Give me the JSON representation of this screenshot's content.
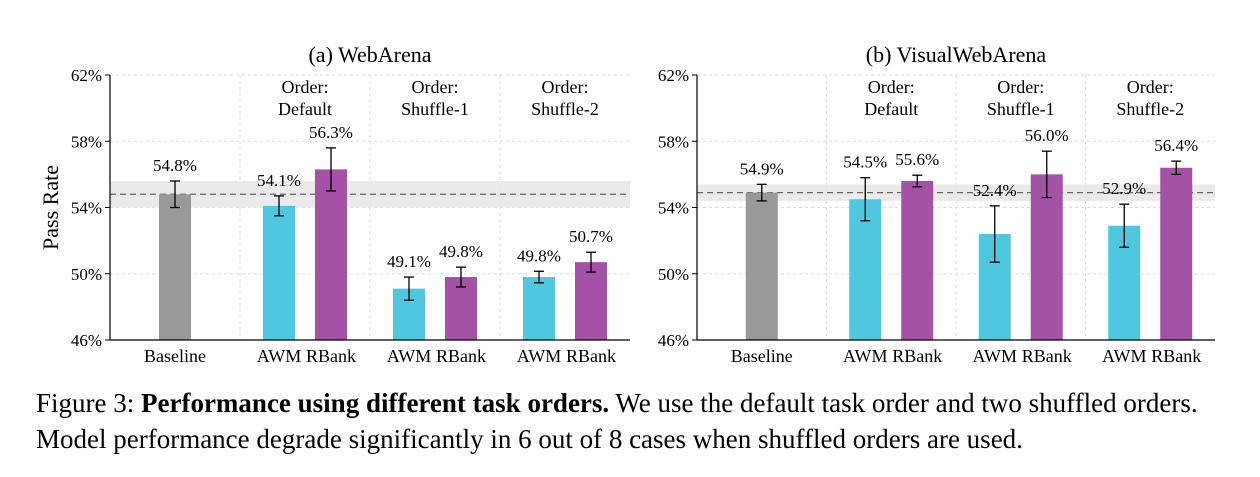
{
  "chart_data": [
    {
      "type": "bar",
      "title": "(a) WebArena",
      "ylabel": "Pass Rate",
      "ylim": [
        46,
        62
      ],
      "yticks": [
        46,
        50,
        54,
        58,
        62
      ],
      "ytick_labels": [
        "46%",
        "50%",
        "54%",
        "58%",
        "62%"
      ],
      "grid": true,
      "groups": [
        {
          "title": [
            "",
            ""
          ],
          "bars": [
            {
              "label": "Baseline",
              "value": 54.8,
              "err": 0.8,
              "value_label": "54.8%",
              "color": "#999999"
            }
          ]
        },
        {
          "title": [
            "Order:",
            "Default"
          ],
          "bars": [
            {
              "label": "AWM",
              "value": 54.1,
              "err": 0.6,
              "value_label": "54.1%",
              "color": "#4fc8df"
            },
            {
              "label": "RBank",
              "value": 56.3,
              "err": 1.3,
              "value_label": "56.3%",
              "color": "#a452a6"
            }
          ]
        },
        {
          "title": [
            "Order:",
            "Shuffle-1"
          ],
          "bars": [
            {
              "label": "AWM",
              "value": 49.1,
              "err": 0.7,
              "value_label": "49.1%",
              "color": "#4fc8df"
            },
            {
              "label": "RBank",
              "value": 49.8,
              "err": 0.6,
              "value_label": "49.8%",
              "color": "#a452a6"
            }
          ]
        },
        {
          "title": [
            "Order:",
            "Shuffle-2"
          ],
          "bars": [
            {
              "label": "AWM",
              "value": 49.8,
              "err": 0.35,
              "value_label": "49.8%",
              "color": "#4fc8df"
            },
            {
              "label": "RBank",
              "value": 50.7,
              "err": 0.6,
              "value_label": "50.7%",
              "color": "#a452a6"
            }
          ]
        }
      ],
      "baseline_line": 54.8,
      "baseline_band": [
        54.0,
        55.6
      ]
    },
    {
      "type": "bar",
      "title": "(b) VisualWebArena",
      "ylabel": "",
      "ylim": [
        46,
        62
      ],
      "yticks": [
        46,
        50,
        54,
        58,
        62
      ],
      "ytick_labels": [
        "46%",
        "50%",
        "54%",
        "58%",
        "62%"
      ],
      "grid": true,
      "groups": [
        {
          "title": [
            "",
            ""
          ],
          "bars": [
            {
              "label": "Baseline",
              "value": 54.9,
              "err": 0.5,
              "value_label": "54.9%",
              "color": "#999999"
            }
          ]
        },
        {
          "title": [
            "Order:",
            "Default"
          ],
          "bars": [
            {
              "label": "AWM",
              "value": 54.5,
              "err": 1.3,
              "value_label": "54.5%",
              "color": "#4fc8df"
            },
            {
              "label": "RBank",
              "value": 55.6,
              "err": 0.35,
              "value_label": "55.6%",
              "color": "#a452a6"
            }
          ]
        },
        {
          "title": [
            "Order:",
            "Shuffle-1"
          ],
          "bars": [
            {
              "label": "AWM",
              "value": 52.4,
              "err": 1.7,
              "value_label": "52.4%",
              "color": "#4fc8df"
            },
            {
              "label": "RBank",
              "value": 56.0,
              "err": 1.4,
              "value_label": "56.0%",
              "color": "#a452a6"
            }
          ]
        },
        {
          "title": [
            "Order:",
            "Shuffle-2"
          ],
          "bars": [
            {
              "label": "AWM",
              "value": 52.9,
              "err": 1.3,
              "value_label": "52.9%",
              "color": "#4fc8df"
            },
            {
              "label": "RBank",
              "value": 56.4,
              "err": 0.4,
              "value_label": "56.4%",
              "color": "#a452a6"
            }
          ]
        }
      ],
      "baseline_line": 54.9,
      "baseline_band": [
        54.4,
        55.4
      ]
    }
  ],
  "caption": {
    "prefix": "Figure 3: ",
    "bold": "Performance using different task orders.",
    "rest": " We use the default task order and two shuffled orders. Model performance degrade significantly in 6 out of 8 cases when shuffled orders are used."
  }
}
